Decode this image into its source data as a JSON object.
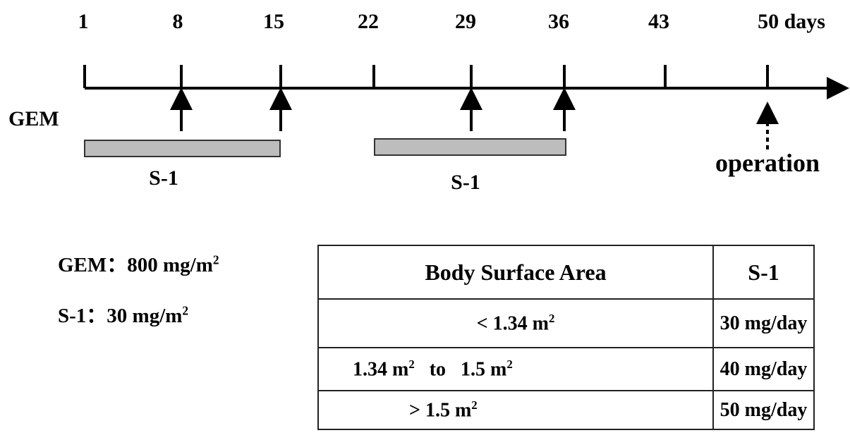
{
  "timeline": {
    "ticks": [
      "1",
      "8",
      "15",
      "22",
      "29",
      "36",
      "43",
      "50 days"
    ],
    "gem_label": "GEM",
    "s1_label": "S-1",
    "operation_label": "operation"
  },
  "doses": {
    "gem": "GEM：800 mg/m",
    "s1": "S-1：30 mg/m",
    "sup": "2"
  },
  "table": {
    "headers": [
      "Body Surface Area",
      "S-1"
    ],
    "rows": [
      {
        "area": "< 1.34 m",
        "dose": "30 mg/day"
      },
      {
        "area_a": "1.34 m",
        "to": "to",
        "area_b": "1.5 m",
        "dose": "40 mg/day"
      },
      {
        "area": "> 1.5 m",
        "dose": "50 mg/day"
      }
    ],
    "sup": "2"
  }
}
